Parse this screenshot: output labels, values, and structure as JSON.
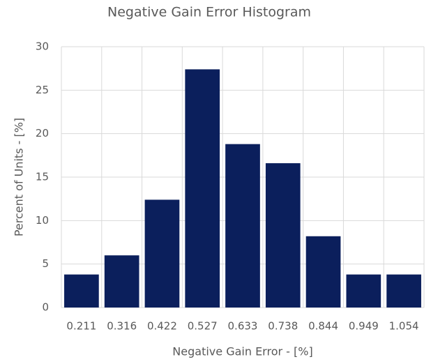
{
  "chart_data": {
    "type": "bar",
    "title": "Negative Gain Error Histogram",
    "x_label": "Negative Gain Error - [%]",
    "y_label": "Percent of Units - [%]",
    "categories": [
      "0.211",
      "0.316",
      "0.422",
      "0.527",
      "0.633",
      "0.738",
      "0.844",
      "0.949",
      "1.054"
    ],
    "values": [
      3.8,
      6,
      12.4,
      27.4,
      18.8,
      16.6,
      8.2,
      3.8,
      3.8
    ],
    "color": "#0b1f5c",
    "ylim": [
      0,
      30
    ],
    "yticks": [
      0,
      5,
      10,
      15,
      20,
      25,
      30
    ],
    "grid": true
  }
}
